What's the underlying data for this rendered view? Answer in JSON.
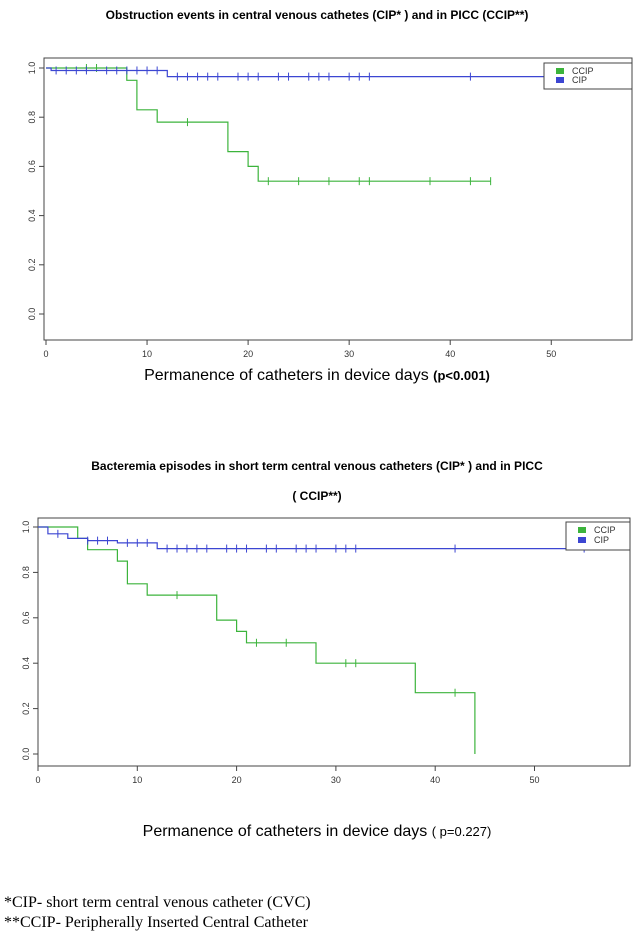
{
  "chart_data": [
    {
      "type": "line",
      "title": "Obstruction events in central venous cathetes (CIP* ) and in  PICC (CCIP**)",
      "xlabel": "Permanence of catheters in device days",
      "pvalue": "(p<0.001)",
      "xlim": [
        0,
        57
      ],
      "ylim": [
        0,
        1.0
      ],
      "xticks": [
        "0",
        "10",
        "20",
        "30",
        "40",
        "50"
      ],
      "yticks": [
        "0.0",
        "0.2",
        "0.4",
        "0.6",
        "0.8",
        "1.0"
      ],
      "legend_position": "top-right",
      "series": [
        {
          "name": "CCIP",
          "color": "#3cb43c",
          "steps": [
            [
              0,
              1.0
            ],
            [
              8,
              1.0
            ],
            [
              8,
              0.95
            ],
            [
              9,
              0.95
            ],
            [
              9,
              0.83
            ],
            [
              11,
              0.83
            ],
            [
              11,
              0.78
            ],
            [
              18,
              0.78
            ],
            [
              18,
              0.66
            ],
            [
              20,
              0.66
            ],
            [
              20,
              0.6
            ],
            [
              21,
              0.6
            ],
            [
              21,
              0.54
            ],
            [
              44,
              0.54
            ]
          ],
          "censors": [
            4,
            5,
            14,
            22,
            25,
            28,
            31,
            32,
            38,
            42,
            44
          ]
        },
        {
          "name": "CIP",
          "color": "#3c46d2",
          "steps": [
            [
              0,
              1.0
            ],
            [
              0.5,
              1.0
            ],
            [
              0.5,
              0.99
            ],
            [
              12,
              0.99
            ],
            [
              12,
              0.965
            ],
            [
              57,
              0.965
            ]
          ],
          "censors": [
            1,
            2,
            3,
            4,
            6,
            7,
            8,
            9,
            10,
            11,
            13,
            14,
            15,
            16,
            17,
            19,
            20,
            21,
            23,
            24,
            26,
            27,
            28,
            30,
            31,
            32,
            42
          ]
        }
      ]
    },
    {
      "type": "line",
      "title_line1": "Bacteremia episodes in short term  central venous catheters (CIP* ) and in  PICC",
      "title_line2": "( CCIP**)",
      "xlabel": "Permanence of catheters in device days",
      "pvalue": "( p=0.227)",
      "xlim": [
        0,
        57
      ],
      "ylim": [
        0,
        1.0
      ],
      "xticks": [
        "0",
        "10",
        "20",
        "30",
        "40",
        "50"
      ],
      "yticks": [
        "0.0",
        "0.2",
        "0.4",
        "0.6",
        "0.8",
        "1.0"
      ],
      "legend_position": "top-right",
      "series": [
        {
          "name": "CCIP",
          "color": "#3cb43c",
          "steps": [
            [
              0,
              1.0
            ],
            [
              4,
              1.0
            ],
            [
              4,
              0.95
            ],
            [
              5,
              0.95
            ],
            [
              5,
              0.9
            ],
            [
              8,
              0.9
            ],
            [
              8,
              0.85
            ],
            [
              9,
              0.85
            ],
            [
              9,
              0.75
            ],
            [
              11,
              0.75
            ],
            [
              11,
              0.7
            ],
            [
              18,
              0.7
            ],
            [
              18,
              0.59
            ],
            [
              20,
              0.59
            ],
            [
              20,
              0.54
            ],
            [
              21,
              0.54
            ],
            [
              21,
              0.49
            ],
            [
              28,
              0.49
            ],
            [
              28,
              0.4
            ],
            [
              38,
              0.4
            ],
            [
              38,
              0.27
            ],
            [
              44,
              0.27
            ],
            [
              44,
              0.0
            ]
          ],
          "censors": [
            14,
            22,
            25,
            31,
            32,
            42
          ]
        },
        {
          "name": "CIP",
          "color": "#3c46d2",
          "steps": [
            [
              0,
              1.0
            ],
            [
              1,
              1.0
            ],
            [
              1,
              0.97
            ],
            [
              3,
              0.97
            ],
            [
              3,
              0.95
            ],
            [
              5,
              0.95
            ],
            [
              5,
              0.94
            ],
            [
              8,
              0.94
            ],
            [
              8,
              0.93
            ],
            [
              12,
              0.93
            ],
            [
              12,
              0.905
            ],
            [
              55,
              0.905
            ]
          ],
          "censors": [
            2,
            5,
            6,
            7,
            9,
            10,
            11,
            13,
            14,
            15,
            16,
            17,
            19,
            20,
            21,
            23,
            24,
            26,
            27,
            28,
            30,
            31,
            32,
            42,
            55
          ]
        }
      ]
    }
  ],
  "footnotes": {
    "line1": "*CIP- short term central venous catheter (CVC)",
    "line2": "**CCIP- Peripherally Inserted Central Catheter"
  }
}
